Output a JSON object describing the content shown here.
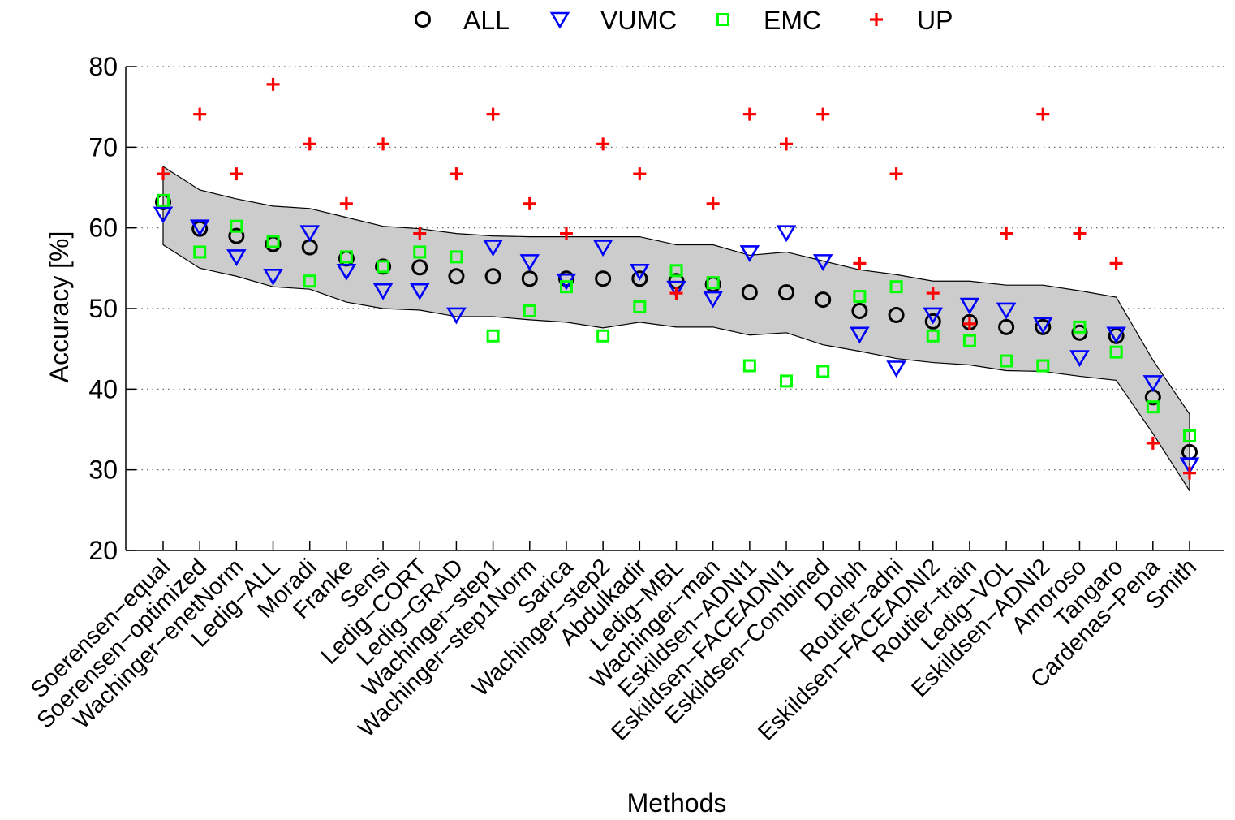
{
  "chart_data": {
    "type": "scatter",
    "xlabel": "Methods",
    "ylabel": "Accuracy [%]",
    "ylim": [
      20,
      80
    ],
    "yticks": [
      20,
      30,
      40,
      50,
      60,
      70,
      80
    ],
    "grid": "horizontal dotted",
    "legend_position": "top",
    "categories": [
      "Soerensen−equal",
      "Soerensen−optimized",
      "Wachinger−enetNorm",
      "Ledig−ALL",
      "Moradi",
      "Franke",
      "Sensi",
      "Ledig−CORT",
      "Ledig−GRAD",
      "Wachinger−step1",
      "Wachinger−step1Norm",
      "Sarica",
      "Wachinger−step2",
      "Abdulkadir",
      "Ledig−MBL",
      "Wachinger−man",
      "Eskildsen−ADNI1",
      "Eskildsen−FACEADNI1",
      "Eskildsen−Combined",
      "Dolph",
      "Routier−adni",
      "Eskildsen−FACEADNI2",
      "Routier−train",
      "Ledig−VOL",
      "Eskildsen−ADNI2",
      "Amoroso",
      "Tangaro",
      "Cardenas−Pena",
      "Smith"
    ],
    "series": [
      {
        "name": "ALL",
        "marker": "circle",
        "color": "#000000",
        "values": [
          63.2,
          59.9,
          59.0,
          58.0,
          57.6,
          56.2,
          55.2,
          55.1,
          54.0,
          54.0,
          53.7,
          53.7,
          53.7,
          53.7,
          53.4,
          53.0,
          52.0,
          52.0,
          51.1,
          49.7,
          49.2,
          48.4,
          48.3,
          47.7,
          47.7,
          47.0,
          46.6,
          39.0,
          32.2
        ]
      },
      {
        "name": "VUMC",
        "marker": "triangle-down",
        "color": "#0000ff",
        "values": [
          61.7,
          60.1,
          56.4,
          54.0,
          59.4,
          54.6,
          52.2,
          52.2,
          49.2,
          57.6,
          55.8,
          53.4,
          57.6,
          54.6,
          52.5,
          51.2,
          56.9,
          59.4,
          55.8,
          46.8,
          42.6,
          49.2,
          50.4,
          49.8,
          48.0,
          43.9,
          46.8,
          40.8,
          30.6
        ]
      },
      {
        "name": "EMC",
        "marker": "square",
        "color": "#00ff00",
        "values": [
          63.4,
          57.0,
          60.2,
          58.3,
          53.4,
          56.4,
          55.2,
          57.0,
          56.4,
          46.6,
          49.7,
          52.7,
          46.6,
          50.2,
          54.7,
          53.2,
          42.9,
          41.0,
          42.2,
          51.5,
          52.7,
          46.6,
          46.0,
          43.5,
          42.9,
          47.7,
          44.6,
          37.8,
          34.2
        ]
      },
      {
        "name": "UP",
        "marker": "plus",
        "color": "#ff0000",
        "values": [
          66.7,
          74.1,
          66.7,
          77.8,
          70.4,
          63.0,
          70.4,
          59.3,
          66.7,
          74.1,
          63.0,
          59.3,
          70.4,
          66.7,
          51.9,
          63.0,
          74.1,
          70.4,
          74.1,
          55.6,
          66.7,
          51.9,
          48.1,
          59.3,
          74.1,
          59.3,
          55.6,
          33.3,
          29.6
        ]
      }
    ],
    "band": {
      "upper": [
        67.6,
        64.7,
        63.6,
        62.7,
        62.4,
        61.3,
        60.2,
        59.9,
        59.3,
        59.0,
        58.9,
        58.9,
        58.9,
        58.9,
        57.9,
        57.9,
        56.6,
        57.0,
        55.9,
        54.8,
        54.2,
        53.4,
        53.4,
        52.9,
        52.9,
        52.2,
        51.4,
        43.6,
        36.9
      ],
      "lower": [
        57.9,
        55.0,
        54.0,
        52.7,
        52.4,
        50.8,
        50.0,
        49.8,
        49.0,
        49.0,
        48.6,
        48.3,
        47.6,
        48.3,
        47.7,
        47.7,
        46.7,
        47.0,
        45.5,
        44.7,
        43.8,
        43.3,
        43.0,
        42.3,
        42.2,
        41.6,
        41.1,
        34.5,
        27.4
      ]
    }
  }
}
